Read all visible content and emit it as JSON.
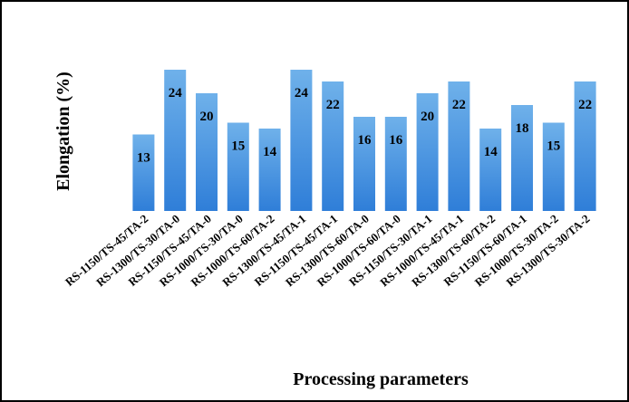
{
  "chart_data": {
    "type": "bar",
    "categories": [
      "RS-1150/TS-45/TA-2",
      "RS-1300/TS-30/TA-0",
      "RS-1150/TS-45/TA-0",
      "RS-1000/TS-30/TA-0",
      "RS-1000/TS-60/TA-2",
      "RS-1300/TS-45/TA-1",
      "RS-1150/TS-45/TA-1",
      "RS-1300/TS-60/TA-0",
      "RS-1000/TS-60/TA-0",
      "RS-1150/TS-30/TA-1",
      "RS-1000/TS-45/TA-1",
      "RS-1300/TS-60/TA-2",
      "RS-1150/TS-60/TA-1",
      "RS-1000/TS-30/TA-2",
      "RS-1300/TS-30/TA-2"
    ],
    "values": [
      13,
      24,
      20,
      15,
      14,
      24,
      22,
      16,
      16,
      20,
      22,
      14,
      18,
      15,
      22
    ],
    "data_labels": [
      "13",
      "24",
      "20",
      "15",
      "14",
      "24",
      "22",
      "16",
      "16",
      "20",
      "22",
      "14",
      "18",
      "15",
      "22"
    ],
    "xlabel": "Processing parameters",
    "ylabel": "Elongation (%)",
    "ylim": [
      0,
      24
    ],
    "grid": false,
    "legend": "none",
    "colors": {
      "bar_top": "#6fb1ea",
      "bar_bottom": "#2f7ed8",
      "text": "#000000",
      "frame": "#000000"
    }
  }
}
